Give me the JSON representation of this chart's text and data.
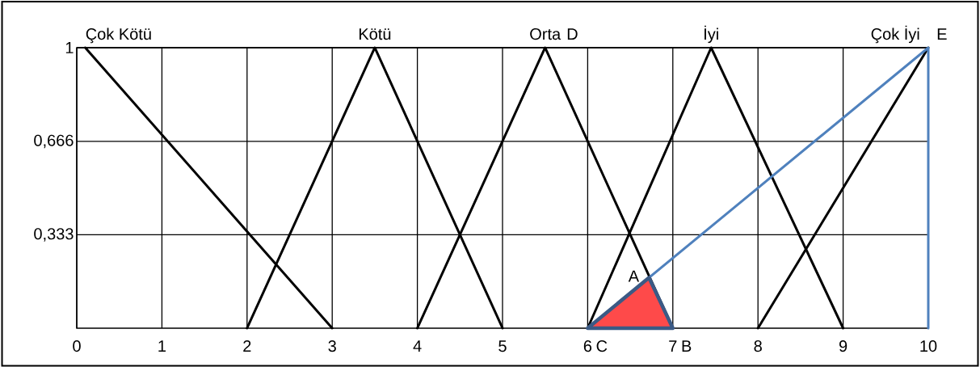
{
  "chart_data": {
    "type": "line",
    "xlim": [
      0,
      10
    ],
    "ylim": [
      0,
      1
    ],
    "xticks": [
      0,
      1,
      2,
      3,
      4,
      5,
      6,
      7,
      8,
      9,
      10
    ],
    "yticks": [
      {
        "value": 0.333,
        "label": "0,333"
      },
      {
        "value": 0.666,
        "label": "0,666"
      },
      {
        "value": 1,
        "label": "1"
      }
    ],
    "grid": true,
    "series": [
      {
        "name": "Çok Kötü",
        "color": "#000000",
        "x": [
          0.1,
          3
        ],
        "values": [
          1,
          0
        ]
      },
      {
        "name": "Kötü",
        "color": "#000000",
        "x": [
          2,
          3.5,
          5
        ],
        "values": [
          0,
          1,
          0
        ]
      },
      {
        "name": "Orta",
        "color": "#000000",
        "x": [
          4,
          5.5,
          7
        ],
        "values": [
          0,
          1,
          0
        ]
      },
      {
        "name": "İyi",
        "color": "#000000",
        "x": [
          6,
          7.45,
          9
        ],
        "values": [
          0,
          1,
          0
        ]
      },
      {
        "name": "Çok İyi",
        "color": "#000000",
        "x": [
          8,
          10
        ],
        "values": [
          0,
          1
        ]
      },
      {
        "color": "#4f81bd",
        "x": [
          6,
          10,
          10
        ],
        "values": [
          0,
          1,
          0
        ]
      },
      {
        "type": "area",
        "color": "#fe4a4a",
        "x": [
          6,
          6.72,
          7
        ],
        "values": [
          0,
          0.18,
          0
        ]
      }
    ],
    "annotations": [
      {
        "text": "A",
        "x": 6.72,
        "y": 0.18
      },
      {
        "text": "B",
        "x": 7,
        "y": 0
      },
      {
        "text": "C",
        "x": 6,
        "y": 0
      },
      "D",
      {
        "text": "E",
        "x": 10,
        "y": 1
      }
    ]
  }
}
